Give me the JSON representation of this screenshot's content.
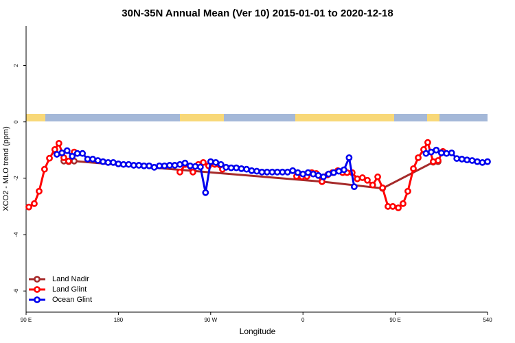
{
  "chart_data": {
    "type": "line",
    "title": "30N-35N Annual Mean (Ver 10)   2015-01-01 to 2020-12-18",
    "x_label": "Longitude",
    "y_label": "XCO2 - MLO trend (ppm)",
    "xlim": [
      90,
      540
    ],
    "xticks": [
      {
        "value": 90,
        "label": "90 E"
      },
      180,
      {
        "value": 270,
        "label": "90 W"
      },
      {
        "value": 360,
        "label": "0"
      },
      {
        "value": 450,
        "label": "90 E"
      },
      540
    ],
    "ylim": [
      -6.75,
      3.4
    ],
    "yticks": [
      -6,
      -4,
      -2,
      0,
      2
    ],
    "legend": "bottom-left",
    "series": [
      {
        "name": "Land Nadir",
        "color": "#a52a2a",
        "x": [
          126.8,
          131.5,
          136.9,
          378.6,
          437.6,
          487,
          491.8
        ],
        "values": [
          -1.39,
          -1.41,
          -1.39,
          -2.12,
          -2.36,
          -1.43,
          -1.41
        ]
      },
      {
        "name": "Land Glint",
        "color": "#ff0000",
        "x": [
          92.7,
          98,
          102.7,
          108,
          112.8,
          118,
          122,
          126.8,
          131.5,
          136.9,
          200,
          240,
          245.4,
          252.7,
          258,
          262.8,
          268,
          274,
          281.5,
          320,
          353.8,
          359,
          363.9,
          368.6,
          373,
          378.6,
          384,
          388.7,
          394,
          398.7,
          403,
          408,
          413,
          418,
          422.8,
          428,
          432.9,
          437.6,
          442.9,
          447.6,
          453,
          457.6,
          462.3,
          467.7,
          472.4,
          477.7,
          481.7,
          487,
          491.8,
          496.5
        ],
        "values": [
          -3.02,
          -2.9,
          -2.46,
          -1.68,
          -1.29,
          -0.98,
          -0.76,
          -1.27,
          -1.39,
          -1.07,
          null,
          -1.78,
          -1.51,
          -1.78,
          -1.51,
          -1.44,
          -1.56,
          -1.51,
          -1.68,
          null,
          -1.93,
          -1.95,
          -1.93,
          -1.8,
          -1.83,
          -2.12,
          -1.88,
          -1.8,
          -1.73,
          -1.8,
          -1.8,
          -1.8,
          -2.02,
          -1.98,
          -2.07,
          -2.24,
          -1.95,
          -2.34,
          -3.0,
          -3.0,
          -3.05,
          -2.9,
          -2.46,
          -1.66,
          -1.27,
          -0.98,
          -0.73,
          -1.41,
          -1.37,
          -1.05
        ]
      },
      {
        "name": "Ocean Glint",
        "color": "#0000ee",
        "x": [
          120,
          125,
          130,
          135,
          140,
          145,
          150,
          155,
          160,
          165,
          170,
          175,
          180,
          185,
          190,
          195,
          200,
          205,
          210,
          215,
          220,
          225,
          230,
          235,
          240,
          245,
          250,
          255,
          260,
          265,
          270,
          275,
          280,
          285,
          290,
          295,
          300,
          305,
          310,
          315,
          320,
          325,
          330,
          335,
          340,
          345,
          350,
          355,
          360,
          365,
          370,
          375,
          380,
          385,
          390,
          395,
          400,
          405,
          410,
          445,
          480,
          485,
          490,
          495,
          500,
          505,
          510,
          515,
          520,
          525,
          530,
          535,
          540
        ],
        "values": [
          -1.15,
          -1.1,
          -1.02,
          -1.22,
          -1.12,
          -1.12,
          -1.32,
          -1.32,
          -1.37,
          -1.41,
          -1.44,
          -1.44,
          -1.49,
          -1.51,
          -1.51,
          -1.54,
          -1.54,
          -1.56,
          -1.56,
          -1.61,
          -1.56,
          -1.56,
          -1.54,
          -1.54,
          -1.51,
          -1.46,
          -1.56,
          -1.58,
          -1.6,
          -2.51,
          -1.41,
          -1.44,
          -1.51,
          -1.61,
          -1.63,
          -1.63,
          -1.66,
          -1.68,
          -1.73,
          -1.75,
          -1.78,
          -1.78,
          -1.78,
          -1.78,
          -1.78,
          -1.78,
          -1.73,
          -1.8,
          -1.85,
          -1.8,
          -1.85,
          -1.9,
          -1.95,
          -1.85,
          -1.8,
          -1.75,
          -1.7,
          -1.27,
          -2.3,
          null,
          -1.12,
          -1.07,
          -1.0,
          -1.1,
          -1.12,
          -1.1,
          -1.3,
          -1.32,
          -1.35,
          -1.37,
          -1.41,
          -1.44,
          -1.41
        ]
      }
    ]
  }
}
